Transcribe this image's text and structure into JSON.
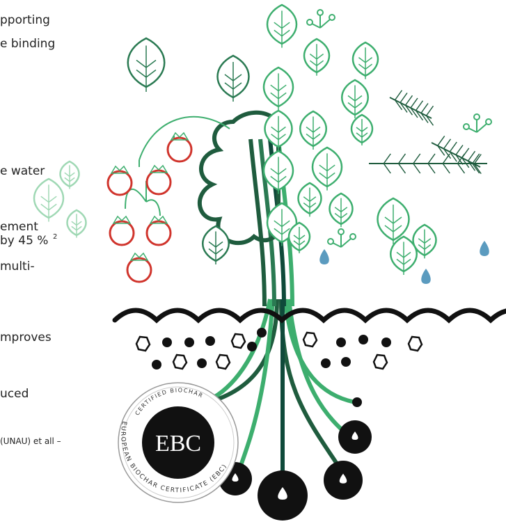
{
  "text_lines": [
    "pporting",
    "e binding",
    "e water",
    "ement",
    "by 45 %",
    "multi-",
    "mproves",
    "uced"
  ],
  "footnote_mark": "2",
  "reference": "(UNAU) et all –",
  "badge": {
    "top_text": "CERTIFIED BIOCHAR",
    "center_text": "EBC",
    "bottom_text": "EUROPEAN BIOCHAR CERTIFICATE (EBC)"
  }
}
